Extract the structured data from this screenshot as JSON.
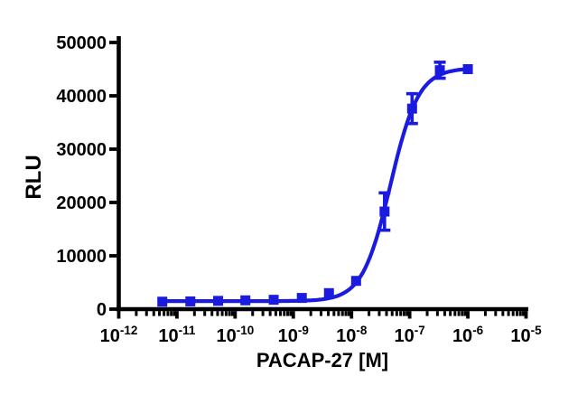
{
  "figure": {
    "background": "#ffffff"
  },
  "chart_data": {
    "type": "scatter",
    "title": "",
    "xlabel": "PACAP-27 [M]",
    "ylabel": "RLU",
    "x_scale": "log10",
    "x_log_range": [
      -12,
      -5
    ],
    "ylim": [
      0,
      50000
    ],
    "grid": false,
    "legend": "none",
    "axis_color": "#000000",
    "x_tick_base": "10",
    "y_ticks": [
      {
        "v": 0,
        "label": "0"
      },
      {
        "v": 10000,
        "label": "10000"
      },
      {
        "v": 20000,
        "label": "20000"
      },
      {
        "v": 30000,
        "label": "30000"
      },
      {
        "v": 40000,
        "label": "40000"
      },
      {
        "v": 50000,
        "label": "50000"
      }
    ],
    "x_ticks": [
      {
        "exp": -12,
        "label": "-12"
      },
      {
        "exp": -11,
        "label": "-11"
      },
      {
        "exp": -10,
        "label": "-10"
      },
      {
        "exp": -9,
        "label": "-9"
      },
      {
        "exp": -8,
        "label": "-8"
      },
      {
        "exp": -7,
        "label": "-7"
      },
      {
        "exp": -6,
        "label": "-6"
      },
      {
        "exp": -5,
        "label": "-5"
      }
    ],
    "series": [
      {
        "name": "PACAP-27",
        "color": "#1b1be0",
        "marker": "square",
        "marker_size_px": 11,
        "points": [
          {
            "conc": 5.6e-12,
            "rlu": 1400,
            "err": 0
          },
          {
            "conc": 1.7e-11,
            "rlu": 1450,
            "err": 0
          },
          {
            "conc": 5.1e-11,
            "rlu": 1550,
            "err": 0
          },
          {
            "conc": 1.5e-10,
            "rlu": 1650,
            "err": 0
          },
          {
            "conc": 4.6e-10,
            "rlu": 1750,
            "err": 0
          },
          {
            "conc": 1.4e-09,
            "rlu": 2100,
            "err": 0
          },
          {
            "conc": 4.1e-09,
            "rlu": 3000,
            "err": 0
          },
          {
            "conc": 1.2e-08,
            "rlu": 5300,
            "err": 0
          },
          {
            "conc": 3.7e-08,
            "rlu": 18300,
            "err": 3500
          },
          {
            "conc": 1.1e-07,
            "rlu": 37600,
            "err": 2800
          },
          {
            "conc": 3.3e-07,
            "rlu": 44800,
            "err": 1500
          },
          {
            "conc": 1e-06,
            "rlu": 45000,
            "err": 0
          }
        ],
        "fit": {
          "model": "four-parameter-logistic",
          "bottom": 1500,
          "top": 45200,
          "logEC50": -7.33,
          "hill": 1.8
        }
      }
    ]
  }
}
